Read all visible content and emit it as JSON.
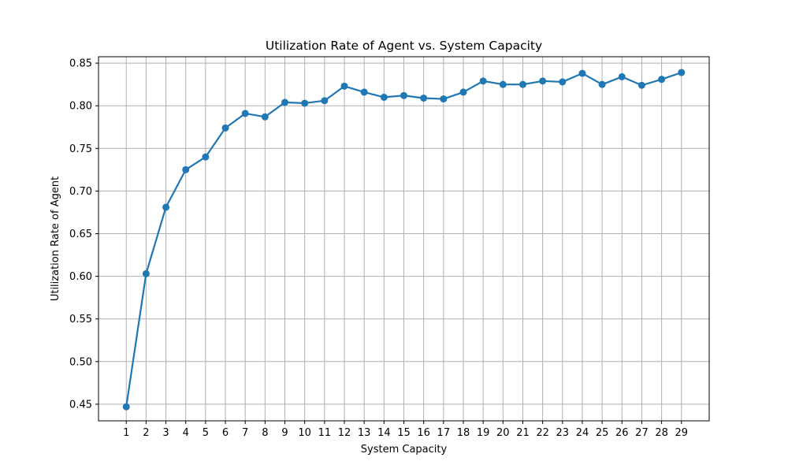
{
  "chart_data": {
    "type": "line",
    "title": "Utilization Rate of Agent vs. System Capacity",
    "xlabel": "System Capacity",
    "ylabel": "Utilization Rate of Agent",
    "x": [
      1,
      2,
      3,
      4,
      5,
      6,
      7,
      8,
      9,
      10,
      11,
      12,
      13,
      14,
      15,
      16,
      17,
      18,
      19,
      20,
      21,
      22,
      23,
      24,
      25,
      26,
      27,
      28,
      29
    ],
    "series": [
      {
        "values": [
          0.447,
          0.603,
          0.681,
          0.725,
          0.74,
          0.774,
          0.791,
          0.787,
          0.804,
          0.803,
          0.806,
          0.823,
          0.816,
          0.81,
          0.812,
          0.809,
          0.808,
          0.816,
          0.829,
          0.825,
          0.825,
          0.829,
          0.828,
          0.838,
          0.825,
          0.834,
          0.824,
          0.831,
          0.839
        ],
        "color": "#1f77b4"
      }
    ],
    "xlim": [
      -0.4,
      30.4
    ],
    "ylim": [
      0.4305,
      0.8575
    ],
    "yticks": [
      0.45,
      0.5,
      0.55,
      0.6,
      0.65,
      0.7,
      0.75,
      0.8,
      0.85
    ],
    "ytick_labels": [
      "0.45",
      "0.50",
      "0.55",
      "0.60",
      "0.65",
      "0.70",
      "0.75",
      "0.80",
      "0.85"
    ],
    "xticks": [
      1,
      2,
      3,
      4,
      5,
      6,
      7,
      8,
      9,
      10,
      11,
      12,
      13,
      14,
      15,
      16,
      17,
      18,
      19,
      20,
      21,
      22,
      23,
      24,
      25,
      26,
      27,
      28,
      29
    ],
    "xtick_labels": [
      "1",
      "2",
      "3",
      "4",
      "5",
      "6",
      "7",
      "8",
      "9",
      "10",
      "11",
      "12",
      "13",
      "14",
      "15",
      "16",
      "17",
      "18",
      "19",
      "20",
      "21",
      "22",
      "23",
      "24",
      "25",
      "26",
      "27",
      "28",
      "29"
    ],
    "grid": true,
    "grid_color": "#b0b0b0",
    "marker": "circle"
  }
}
